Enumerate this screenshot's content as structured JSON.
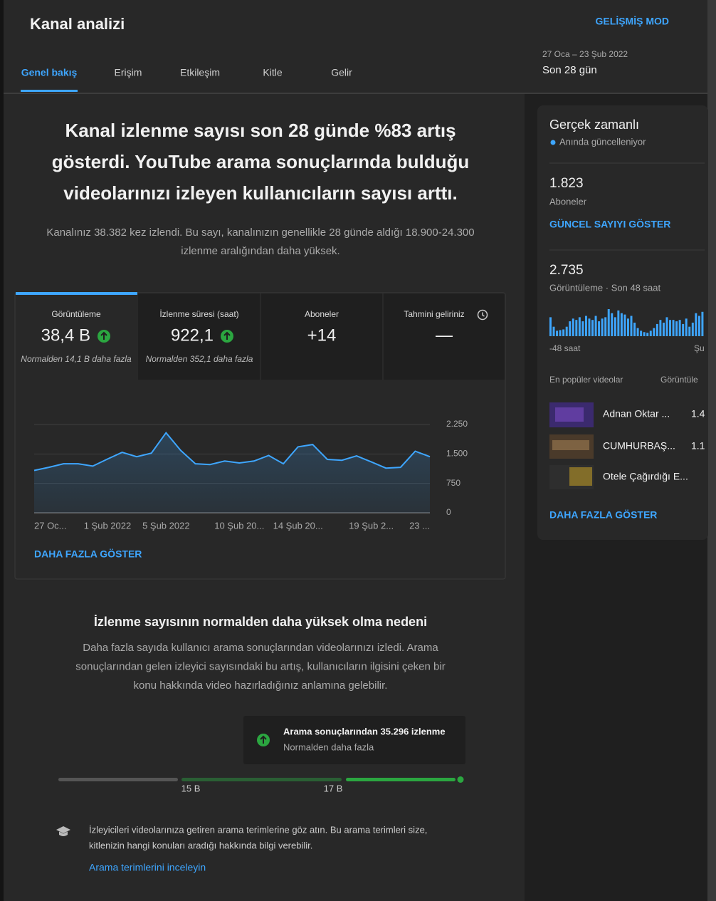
{
  "header": {
    "title": "Kanal analizi",
    "advanced_mode": "GELİŞMİŞ MOD",
    "date_range": "27 Oca – 23 Şub 2022",
    "period": "Son 28 gün"
  },
  "tabs": [
    "Genel bakış",
    "Erişim",
    "Etkileşim",
    "Kitle",
    "Gelir"
  ],
  "headline": {
    "lines": [
      "Kanal izlenme sayısı son 28 günde %83 artış",
      "gösterdi. YouTube arama sonuçlarında bulduğu",
      "videolarınızı izleyen kullanıcıların sayısı arttı."
    ],
    "description": [
      "Kanalınız 38.382 kez izlendi. Bu sayı, kanalınızın genellikle 28 günde aldığı 18.900-24.300",
      "izlenme aralığından daha yüksek."
    ]
  },
  "metric_tabs": [
    {
      "label": "Görüntüleme",
      "value": "38,4 B",
      "note": "Normalden 14,1 B daha fazla",
      "trend": "up"
    },
    {
      "label": "İzlenme süresi (saat)",
      "value": "922,1",
      "note": "Normalden 352,1 daha fazla",
      "trend": "up"
    },
    {
      "label": "Aboneler",
      "value": "+14"
    },
    {
      "label": "Tahmini geliriniz",
      "value": "—"
    }
  ],
  "chart": {
    "type": "line",
    "categories": [
      "27 Oc...",
      null,
      null,
      null,
      null,
      "1 Şub 2022",
      null,
      null,
      null,
      "5 Şub 2022",
      null,
      null,
      null,
      null,
      "10 Şub 20...",
      null,
      null,
      null,
      "14 Şub 20...",
      null,
      null,
      null,
      null,
      "19 Şub 2...",
      null,
      null,
      null,
      "23 ..."
    ],
    "values": [
      1080,
      1160,
      1250,
      1250,
      1190,
      1370,
      1540,
      1430,
      1520,
      2040,
      1590,
      1250,
      1230,
      1320,
      1270,
      1320,
      1460,
      1250,
      1680,
      1740,
      1360,
      1340,
      1450,
      1300,
      1140,
      1160,
      1570,
      1430
    ],
    "color": "#3ea6ff",
    "ylim": [
      0,
      2250
    ],
    "yticks": [
      0,
      750,
      {
        "value": 1500,
        "label": "1.500"
      },
      {
        "value": 2250,
        "label": "2.250"
      }
    ],
    "grid": true
  },
  "chart_more": "DAHA FAZLA GÖSTER",
  "reason": {
    "title": "İzlenme sayısının normalden daha yüksek olma nedeni",
    "lines": [
      "Daha fazla sayıda kullanıcı arama sonuçlarından videolarınızı izledi. Arama",
      "sonuçlarından gelen izleyici sayısındaki bu artış, kullanıcıların ilgisini çeken bir",
      "konu hakkında video hazırladığınız anlamına gelebilir."
    ],
    "callout": {
      "title": "Arama sonuçlarından 35.296 izlenme",
      "subtitle": "Normalden daha fazla"
    },
    "range_labels": [
      "15 B",
      "17 B"
    ]
  },
  "tip": {
    "lines": [
      "İzleyicileri videolarınıza getiren arama terimlerine göz atın. Bu arama terimleri size,",
      "kitlenizin hangi konuları aradığı hakkında bilgi verebilir."
    ],
    "link": "Arama terimlerini inceleyin"
  },
  "realtime": {
    "title": "Gerçek zamanlı",
    "status": "Anında güncelleniyor",
    "subscribers": {
      "value": "1.823",
      "label": "Aboneler",
      "action": "GÜNCEL SAYIYI GÖSTER"
    },
    "views": {
      "value": "2.735",
      "label": "Görüntüleme · Son 48 saat",
      "chart": {
        "type": "bar",
        "values": [
          28,
          14,
          8,
          9,
          10,
          14,
          22,
          26,
          24,
          28,
          22,
          30,
          26,
          24,
          30,
          22,
          26,
          28,
          40,
          34,
          28,
          38,
          34,
          32,
          26,
          30,
          20,
          12,
          8,
          6,
          5,
          8,
          12,
          18,
          24,
          20,
          28,
          24,
          24,
          22,
          24,
          18,
          26,
          14,
          20,
          34,
          30,
          36
        ],
        "color": "#3ea6ff",
        "start_label": "-48 saat",
        "end_label": "Şu"
      }
    },
    "top_videos": {
      "title": "En popüler videolar",
      "column": "Görüntüle",
      "items": [
        {
          "title": "Adnan Oktar ...",
          "views": "1.4"
        },
        {
          "title": "CUMHURBAŞ...",
          "views": "1.1"
        },
        {
          "title": "Otele Çağırdığı E..."
        }
      ],
      "more": "DAHA FAZLA GÖSTER"
    }
  }
}
